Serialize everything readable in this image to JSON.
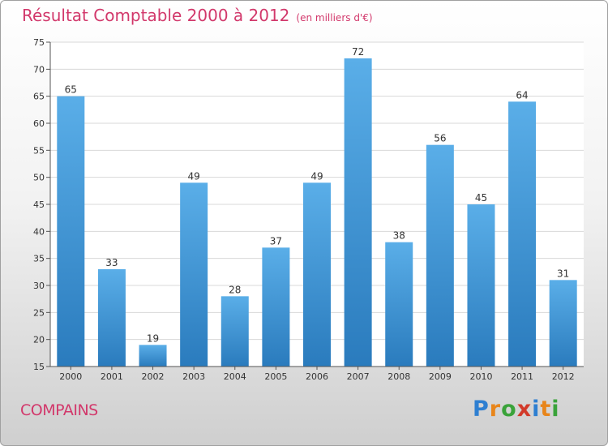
{
  "header": {
    "title": "Résultat Comptable 2000 à 2012",
    "subtitle": "(en milliers d'€)"
  },
  "footer": {
    "place": "COMPAINS",
    "logo": {
      "letters": [
        "P",
        "r",
        "o",
        "x",
        "i",
        "t",
        "i"
      ],
      "colors": [
        "#2e7fd1",
        "#e8851a",
        "#3aa33a",
        "#d23a2a",
        "#2e7fd1",
        "#e8851a",
        "#3aa33a"
      ]
    }
  },
  "chart_data": {
    "type": "bar",
    "categories": [
      "2000",
      "2001",
      "2002",
      "2003",
      "2004",
      "2005",
      "2006",
      "2007",
      "2008",
      "2009",
      "2010",
      "2011",
      "2012"
    ],
    "values": [
      65,
      33,
      19,
      49,
      28,
      37,
      49,
      72,
      38,
      56,
      45,
      64,
      31
    ],
    "data_labels": [
      "65",
      "33",
      "19",
      "49",
      "28",
      "37",
      "49",
      "72",
      "38",
      "56",
      "45",
      "64",
      "31"
    ],
    "yticks": [
      15,
      20,
      25,
      30,
      35,
      40,
      45,
      50,
      55,
      60,
      65,
      70,
      75
    ],
    "ylim": [
      15,
      75
    ],
    "grid": "horizontal",
    "bar_color_top": "#5aaee8",
    "bar_color_bottom": "#2a7bbd",
    "title": "Résultat Comptable 2000 à 2012",
    "xlabel": "",
    "ylabel": ""
  }
}
